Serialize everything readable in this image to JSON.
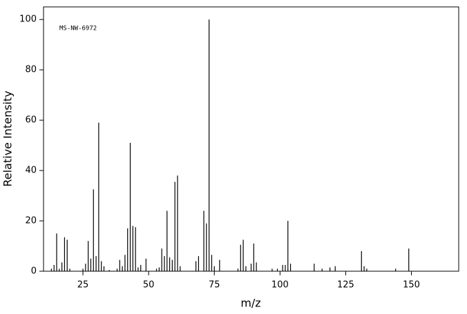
{
  "chart_data": {
    "type": "stem",
    "annotation": "MS-NW-6972",
    "xlabel": "m/z",
    "ylabel": "Relative Intensity",
    "color": "#000000",
    "x": [
      13,
      14,
      15,
      16,
      17,
      18,
      19,
      20,
      25,
      26,
      27,
      28,
      29,
      30,
      31,
      32,
      33,
      35,
      38,
      39,
      40,
      41,
      42,
      43,
      44,
      45,
      46,
      47,
      49,
      53,
      54,
      55,
      56,
      57,
      58,
      59,
      60,
      61,
      62,
      68,
      69,
      71,
      72,
      73,
      74,
      75,
      77,
      84,
      85,
      86,
      87,
      89,
      90,
      91,
      97,
      99,
      101,
      102,
      103,
      104,
      113,
      116,
      119,
      121,
      131,
      132,
      133,
      144,
      149
    ],
    "values": [
      1,
      2.5,
      15,
      1,
      3.5,
      13.5,
      12.5,
      1,
      1,
      3,
      12,
      5,
      32.5,
      6,
      59,
      4,
      2,
      0.5,
      1,
      4.5,
      2,
      6.5,
      17,
      51,
      18,
      17.5,
      1.5,
      2.5,
      5,
      1,
      1.5,
      9,
      6,
      24,
      5.5,
      4.5,
      35.5,
      38,
      2,
      4,
      6,
      24,
      19,
      100,
      6.5,
      2,
      4.5,
      1,
      10.5,
      12.5,
      2,
      3,
      11,
      3.5,
      1,
      1,
      2.5,
      2.5,
      20,
      3,
      3,
      1,
      1.5,
      2,
      8,
      2,
      1,
      1,
      9
    ],
    "xlim": [
      10,
      168
    ],
    "ylim": [
      0,
      105
    ],
    "xticks": [
      25,
      50,
      75,
      100,
      125,
      150
    ],
    "yticks": [
      0,
      20,
      40,
      60,
      80,
      100
    ]
  }
}
